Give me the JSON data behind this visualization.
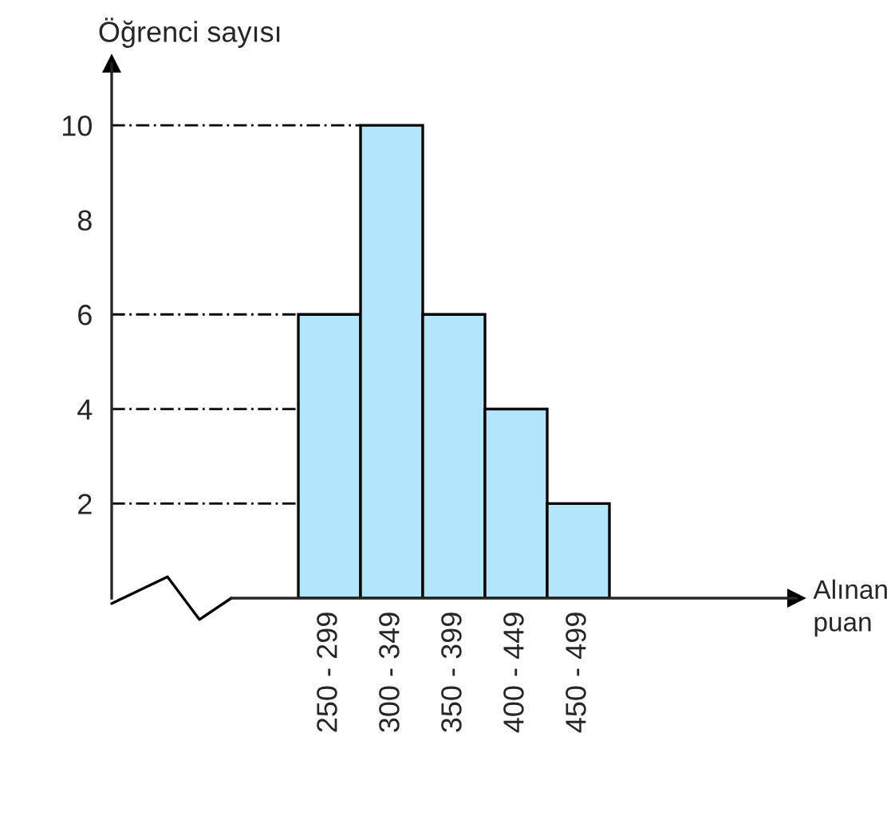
{
  "chart_data": {
    "type": "bar",
    "ylabel": "Öğrenci sayısı",
    "annotations": [
      "Alınan puan"
    ],
    "categories": [
      null,
      null,
      null,
      "250 - 299",
      "300 - 349",
      "350 - 399",
      "400 - 449",
      "450 - 499",
      null,
      null,
      null
    ],
    "values": [
      null,
      null,
      null,
      6,
      10,
      6,
      4,
      2,
      null,
      null,
      null
    ],
    "color": "#b3e5fc",
    "ylim": [
      0,
      11.3
    ],
    "yticks": [
      2,
      4,
      6,
      8,
      10
    ],
    "grid": false,
    "ref_lines": [
      {
        "axis": "y",
        "value": 10,
        "line_style": "dashed"
      },
      {
        "axis": "y",
        "value": 6,
        "line_style": "dashed"
      },
      {
        "axis": "y",
        "value": 4,
        "line_style": "dashed"
      },
      {
        "axis": "y",
        "value": 2,
        "line_style": "dashed"
      }
    ]
  }
}
